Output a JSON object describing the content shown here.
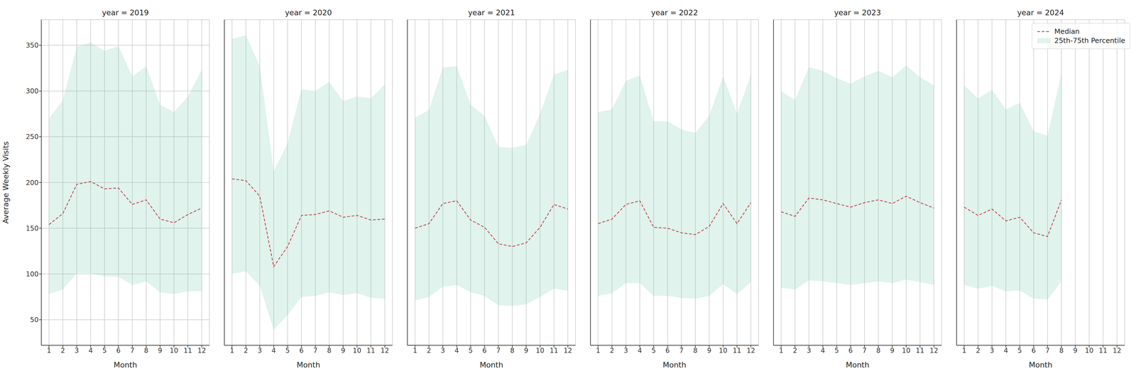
{
  "chart_data": [
    {
      "type": "line",
      "title": "year = 2019",
      "xlabel": "Month",
      "ylabel": "Average Weekly Visits",
      "x": [
        1,
        2,
        3,
        4,
        5,
        6,
        7,
        8,
        9,
        10,
        11,
        12
      ],
      "xlim": [
        0.45,
        12.55
      ],
      "xticks": [
        1,
        2,
        3,
        4,
        5,
        6,
        7,
        8,
        9,
        10,
        11,
        12
      ],
      "ylim": [
        22,
        378
      ],
      "yticks": [
        50,
        100,
        150,
        200,
        250,
        300,
        350
      ],
      "grid": true,
      "series": [
        {
          "name": "Median",
          "type": "line",
          "line_style": "dashed",
          "color": "#c44e52",
          "values": [
            154,
            166,
            198,
            201,
            193,
            194,
            176,
            181,
            160,
            156,
            165,
            172
          ]
        },
        {
          "name": "25th-75th Percentile",
          "type": "area",
          "color": "#66c2a5",
          "lower": [
            78,
            83,
            101,
            101,
            97,
            97,
            88,
            92,
            80,
            78,
            81,
            81
          ],
          "upper": [
            270,
            290,
            348,
            353,
            344,
            349,
            316,
            327,
            285,
            277,
            294,
            323
          ]
        }
      ]
    },
    {
      "type": "line",
      "title": "year = 2020",
      "xlabel": "Month",
      "x": [
        1,
        2,
        3,
        4,
        5,
        6,
        7,
        8,
        9,
        10,
        11,
        12
      ],
      "xlim": [
        0.45,
        12.55
      ],
      "xticks": [
        1,
        2,
        3,
        4,
        5,
        6,
        7,
        8,
        9,
        10,
        11,
        12
      ],
      "ylim": [
        22,
        378
      ],
      "yticks": [
        50,
        100,
        150,
        200,
        250,
        300,
        350
      ],
      "grid": true,
      "tick_labels": "x",
      "series": [
        {
          "name": "Median",
          "type": "line",
          "line_style": "dashed",
          "color": "#c44e52",
          "values": [
            204,
            202,
            185,
            108,
            130,
            164,
            165,
            169,
            162,
            164,
            159,
            160
          ]
        },
        {
          "name": "25th-75th Percentile",
          "type": "area",
          "color": "#66c2a5",
          "lower": [
            100,
            103,
            87,
            39,
            55,
            75,
            76,
            80,
            77,
            79,
            74,
            73
          ],
          "upper": [
            357,
            361,
            327,
            212,
            243,
            302,
            300,
            310,
            289,
            294,
            292,
            307
          ]
        }
      ]
    },
    {
      "type": "line",
      "title": "year = 2021",
      "xlabel": "Month",
      "x": [
        1,
        2,
        3,
        4,
        5,
        6,
        7,
        8,
        9,
        10,
        11,
        12
      ],
      "xlim": [
        0.45,
        12.55
      ],
      "xticks": [
        1,
        2,
        3,
        4,
        5,
        6,
        7,
        8,
        9,
        10,
        11,
        12
      ],
      "ylim": [
        22,
        378
      ],
      "yticks": [
        50,
        100,
        150,
        200,
        250,
        300,
        350
      ],
      "grid": true,
      "tick_labels": "x",
      "series": [
        {
          "name": "Median",
          "type": "line",
          "line_style": "dashed",
          "color": "#c44e52",
          "values": [
            150,
            155,
            177,
            180,
            159,
            151,
            133,
            130,
            134,
            151,
            176,
            171
          ]
        },
        {
          "name": "25th-75th Percentile",
          "type": "area",
          "color": "#66c2a5",
          "lower": [
            71,
            75,
            86,
            88,
            80,
            76,
            66,
            65,
            67,
            75,
            84,
            82
          ],
          "upper": [
            271,
            279,
            326,
            327,
            285,
            273,
            239,
            238,
            241,
            275,
            318,
            323
          ]
        }
      ]
    },
    {
      "type": "line",
      "title": "year = 2022",
      "xlabel": "Month",
      "x": [
        1,
        2,
        3,
        4,
        5,
        6,
        7,
        8,
        9,
        10,
        11,
        12
      ],
      "xlim": [
        0.45,
        12.55
      ],
      "xticks": [
        1,
        2,
        3,
        4,
        5,
        6,
        7,
        8,
        9,
        10,
        11,
        12
      ],
      "ylim": [
        22,
        378
      ],
      "yticks": [
        50,
        100,
        150,
        200,
        250,
        300,
        350
      ],
      "grid": true,
      "tick_labels": "x",
      "series": [
        {
          "name": "Median",
          "type": "line",
          "line_style": "dashed",
          "color": "#c44e52",
          "values": [
            155,
            160,
            176,
            180,
            151,
            150,
            145,
            143,
            152,
            177,
            155,
            178
          ]
        },
        {
          "name": "25th-75th Percentile",
          "type": "area",
          "color": "#66c2a5",
          "lower": [
            76,
            79,
            90,
            90,
            76,
            76,
            74,
            73,
            76,
            89,
            78,
            91
          ],
          "upper": [
            277,
            280,
            311,
            317,
            267,
            267,
            258,
            254,
            273,
            316,
            275,
            318
          ]
        }
      ]
    },
    {
      "type": "line",
      "title": "year = 2023",
      "xlabel": "Month",
      "x": [
        1,
        2,
        3,
        4,
        5,
        6,
        7,
        8,
        9,
        10,
        11,
        12
      ],
      "xlim": [
        0.45,
        12.55
      ],
      "xticks": [
        1,
        2,
        3,
        4,
        5,
        6,
        7,
        8,
        9,
        10,
        11,
        12
      ],
      "ylim": [
        22,
        378
      ],
      "yticks": [
        50,
        100,
        150,
        200,
        250,
        300,
        350
      ],
      "grid": true,
      "tick_labels": "x",
      "series": [
        {
          "name": "Median",
          "type": "line",
          "line_style": "dashed",
          "color": "#c44e52",
          "values": [
            168,
            163,
            183,
            181,
            177,
            173,
            178,
            181,
            177,
            185,
            178,
            172
          ]
        },
        {
          "name": "25th-75th Percentile",
          "type": "area",
          "color": "#66c2a5",
          "lower": [
            85,
            83,
            93,
            92,
            90,
            88,
            90,
            92,
            90,
            94,
            91,
            88
          ],
          "upper": [
            300,
            290,
            326,
            322,
            314,
            308,
            316,
            322,
            315,
            328,
            315,
            306
          ]
        }
      ]
    },
    {
      "type": "line",
      "title": "year = 2024",
      "xlabel": "Month",
      "x": [
        1,
        2,
        3,
        4,
        5,
        6,
        7,
        8
      ],
      "xlim": [
        0.45,
        12.55
      ],
      "xticks": [
        1,
        2,
        3,
        4,
        5,
        6,
        7,
        8,
        9,
        10,
        11,
        12
      ],
      "ylim": [
        22,
        378
      ],
      "yticks": [
        50,
        100,
        150,
        200,
        250,
        300,
        350
      ],
      "grid": true,
      "tick_labels": "x",
      "legend": "upper right",
      "series": [
        {
          "name": "Median",
          "type": "line",
          "line_style": "dashed",
          "color": "#c44e52",
          "values": [
            173,
            164,
            171,
            158,
            162,
            145,
            141,
            181
          ]
        },
        {
          "name": "25th-75th Percentile",
          "type": "area",
          "color": "#66c2a5",
          "lower": [
            88,
            84,
            87,
            81,
            82,
            73,
            72,
            92
          ],
          "upper": [
            306,
            292,
            301,
            280,
            287,
            256,
            251,
            320
          ]
        }
      ]
    }
  ]
}
